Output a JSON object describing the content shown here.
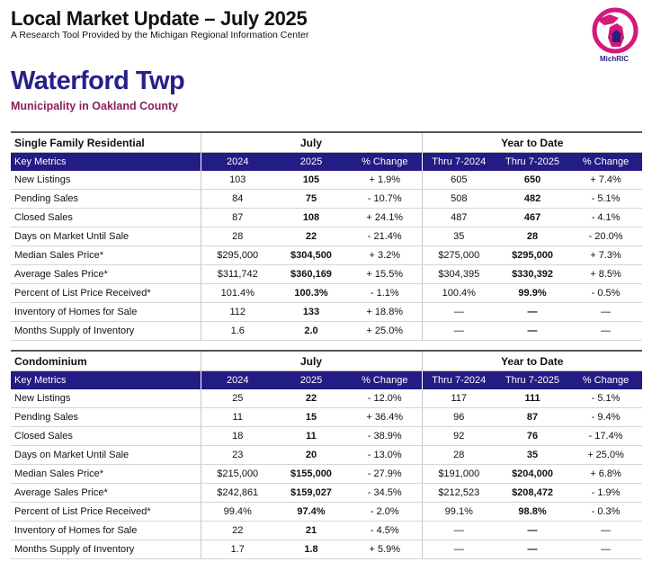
{
  "header": {
    "title": "Local Market Update – July 2025",
    "subtitle": "A Research Tool Provided by the Michigan Regional Information Center",
    "logo_text": "MichRIC",
    "logo_ring_text": "Michigan Regional Information Center"
  },
  "municipality": "Waterford Twp",
  "county": "Municipality in Oakland County",
  "colors": {
    "navy": "#221c84",
    "magenta": "#d4197a",
    "county": "#8b1f5b"
  },
  "tables": [
    {
      "section": "Single Family Residential",
      "group_july": "July",
      "group_ytd": "Year to Date",
      "columns": [
        "Key Metrics",
        "2024",
        "2025",
        "% Change",
        "Thru 7-2024",
        "Thru 7-2025",
        "% Change"
      ],
      "rows": [
        [
          "New Listings",
          "103",
          "105",
          "+ 1.9%",
          "605",
          "650",
          "+ 7.4%"
        ],
        [
          "Pending Sales",
          "84",
          "75",
          "- 10.7%",
          "508",
          "482",
          "- 5.1%"
        ],
        [
          "Closed Sales",
          "87",
          "108",
          "+ 24.1%",
          "487",
          "467",
          "- 4.1%"
        ],
        [
          "Days on Market Until Sale",
          "28",
          "22",
          "- 21.4%",
          "35",
          "28",
          "- 20.0%"
        ],
        [
          "Median Sales Price*",
          "$295,000",
          "$304,500",
          "+ 3.2%",
          "$275,000",
          "$295,000",
          "+ 7.3%"
        ],
        [
          "Average Sales Price*",
          "$311,742",
          "$360,169",
          "+ 15.5%",
          "$304,395",
          "$330,392",
          "+ 8.5%"
        ],
        [
          "Percent of List Price Received*",
          "101.4%",
          "100.3%",
          "- 1.1%",
          "100.4%",
          "99.9%",
          "- 0.5%"
        ],
        [
          "Inventory of Homes for Sale",
          "112",
          "133",
          "+ 18.8%",
          "—",
          "—",
          "—"
        ],
        [
          "Months Supply of Inventory",
          "1.6",
          "2.0",
          "+ 25.0%",
          "—",
          "—",
          "—"
        ]
      ]
    },
    {
      "section": "Condominium",
      "group_july": "July",
      "group_ytd": "Year to Date",
      "columns": [
        "Key Metrics",
        "2024",
        "2025",
        "% Change",
        "Thru 7-2024",
        "Thru 7-2025",
        "% Change"
      ],
      "rows": [
        [
          "New Listings",
          "25",
          "22",
          "- 12.0%",
          "117",
          "111",
          "- 5.1%"
        ],
        [
          "Pending Sales",
          "11",
          "15",
          "+ 36.4%",
          "96",
          "87",
          "- 9.4%"
        ],
        [
          "Closed Sales",
          "18",
          "11",
          "- 38.9%",
          "92",
          "76",
          "- 17.4%"
        ],
        [
          "Days on Market Until Sale",
          "23",
          "20",
          "- 13.0%",
          "28",
          "35",
          "+ 25.0%"
        ],
        [
          "Median Sales Price*",
          "$215,000",
          "$155,000",
          "- 27.9%",
          "$191,000",
          "$204,000",
          "+ 6.8%"
        ],
        [
          "Average Sales Price*",
          "$242,861",
          "$159,027",
          "- 34.5%",
          "$212,523",
          "$208,472",
          "- 1.9%"
        ],
        [
          "Percent of List Price Received*",
          "99.4%",
          "97.4%",
          "- 2.0%",
          "99.1%",
          "98.8%",
          "- 0.3%"
        ],
        [
          "Inventory of Homes for Sale",
          "22",
          "21",
          "- 4.5%",
          "—",
          "—",
          "—"
        ],
        [
          "Months Supply of Inventory",
          "1.7",
          "1.8",
          "+ 5.9%",
          "—",
          "—",
          "—"
        ]
      ]
    }
  ]
}
